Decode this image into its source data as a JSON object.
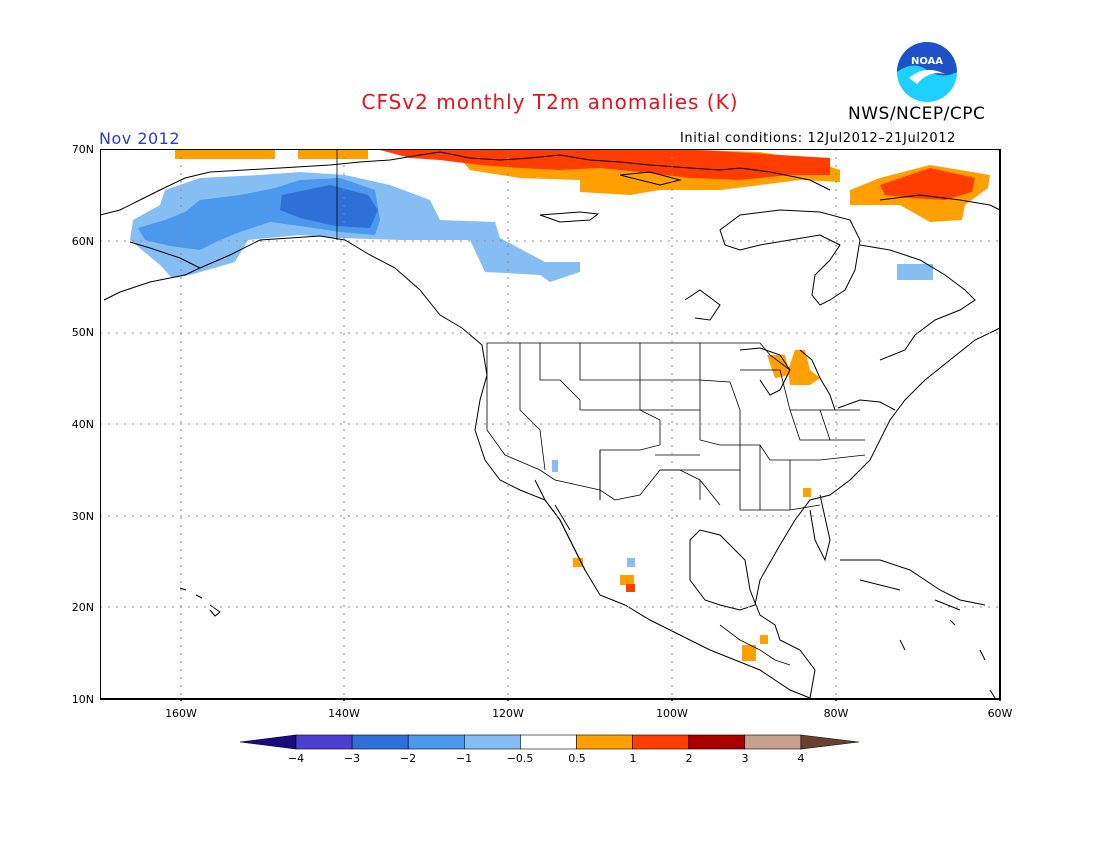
{
  "title": "CFSv2 monthly T2m anomalies (K)",
  "agency": "NWS/NCEP/CPC",
  "month": "Nov 2012",
  "initial_conditions": "Initial conditions: 12Jul2012–21Jul2012",
  "logo_text": "NOAA",
  "lat_labels": [
    "70N",
    "60N",
    "50N",
    "40N",
    "30N",
    "20N",
    "10N"
  ],
  "lon_labels": [
    "160W",
    "140W",
    "120W",
    "100W",
    "80W",
    "60W"
  ],
  "colorbar": {
    "labels": [
      "−4",
      "−3",
      "−2",
      "−1",
      "−0.5",
      "0.5",
      "1",
      "2",
      "3",
      "4"
    ],
    "colors": [
      "#1c0a80",
      "#4a3fd0",
      "#2f6fd8",
      "#4b98ec",
      "#86bef4",
      "#ffffff",
      "#ff9f00",
      "#ff3d00",
      "#a80000",
      "#c8a090",
      "#6b4030"
    ]
  },
  "colors": {
    "title": "#e8121a",
    "month": "#2a3bd6",
    "logo_blue": "#1e50c8",
    "logo_cyan": "#1fd0ff"
  }
}
